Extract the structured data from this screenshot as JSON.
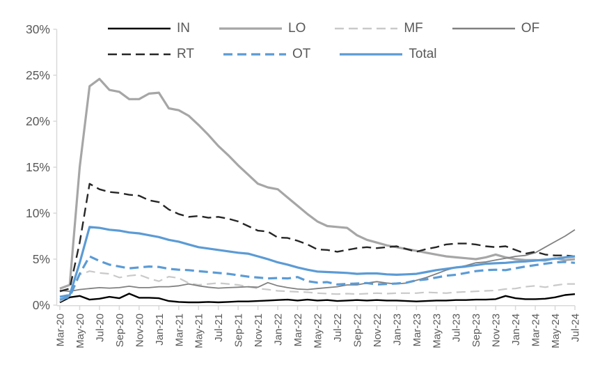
{
  "colors": {
    "axis_line": "#D9D9D9",
    "tick_label_color": "#595959",
    "legend_text_color": "#595959",
    "background": "#FFFFFF"
  },
  "chart_data": {
    "type": "line",
    "title": "",
    "xlabel": "",
    "ylabel": "",
    "ylim": [
      0,
      30
    ],
    "ytick_step": 5,
    "ytick_labels": [
      "0%",
      "5%",
      "10%",
      "15%",
      "20%",
      "25%",
      "30%"
    ],
    "grid": false,
    "legend_position": "top",
    "x_label_every": 2,
    "x_label_rotation": -90,
    "categories": [
      "Mar-20",
      "Apr-20",
      "May-20",
      "Jun-20",
      "Jul-20",
      "Aug-20",
      "Sep-20",
      "Oct-20",
      "Nov-20",
      "Dec-20",
      "Jan-21",
      "Feb-21",
      "Mar-21",
      "Apr-21",
      "May-21",
      "Jun-21",
      "Jul-21",
      "Aug-21",
      "Sep-21",
      "Oct-21",
      "Nov-21",
      "Dec-21",
      "Jan-22",
      "Feb-22",
      "Mar-22",
      "Apr-22",
      "May-22",
      "Jun-22",
      "Jul-22",
      "Aug-22",
      "Sep-22",
      "Oct-22",
      "Nov-22",
      "Dec-22",
      "Jan-23",
      "Feb-23",
      "Mar-23",
      "Apr-23",
      "May-23",
      "Jun-23",
      "Jul-23",
      "Aug-23",
      "Sep-23",
      "Oct-23",
      "Nov-23",
      "Dec-23",
      "Jan-24",
      "Feb-24",
      "Mar-24",
      "Apr-24",
      "May-24",
      "Jun-24",
      "Jul-24"
    ],
    "series": [
      {
        "name": "IN",
        "color": "#000000",
        "style": "solid",
        "width": 2.4,
        "legend_row": 0,
        "values": [
          0.3,
          0.85,
          1.0,
          0.6,
          0.7,
          0.9,
          0.75,
          1.25,
          0.8,
          0.8,
          0.75,
          0.45,
          0.35,
          0.3,
          0.3,
          0.35,
          0.3,
          0.35,
          0.4,
          0.4,
          0.45,
          0.5,
          0.55,
          0.6,
          0.5,
          0.6,
          0.5,
          0.55,
          0.45,
          0.5,
          0.55,
          0.5,
          0.55,
          0.5,
          0.5,
          0.45,
          0.4,
          0.45,
          0.5,
          0.5,
          0.55,
          0.55,
          0.6,
          0.6,
          0.65,
          1.0,
          0.75,
          0.65,
          0.65,
          0.7,
          0.85,
          1.1,
          1.2
        ]
      },
      {
        "name": "LO",
        "color": "#A6A6A6",
        "style": "solid",
        "width": 3.2,
        "legend_row": 0,
        "values": [
          1.8,
          2.2,
          15.0,
          23.8,
          24.6,
          23.4,
          23.2,
          22.4,
          22.4,
          23.0,
          23.1,
          21.4,
          21.2,
          20.6,
          19.6,
          18.5,
          17.3,
          16.3,
          15.2,
          14.2,
          13.2,
          12.8,
          12.6,
          11.7,
          10.8,
          9.9,
          9.1,
          8.6,
          8.5,
          8.4,
          7.6,
          7.1,
          6.8,
          6.5,
          6.3,
          6.1,
          5.9,
          5.7,
          5.5,
          5.3,
          5.2,
          5.1,
          5.0,
          5.2,
          5.5,
          5.2,
          5.0,
          4.9,
          4.9,
          4.85,
          5.1,
          4.9,
          5.0
        ]
      },
      {
        "name": "MF",
        "color": "#C9C9C9",
        "style": "dashed",
        "width": 2.2,
        "legend_row": 0,
        "values": [
          0.4,
          1.0,
          3.3,
          3.7,
          3.5,
          3.4,
          3.0,
          3.2,
          3.3,
          2.9,
          2.6,
          3.1,
          2.95,
          2.4,
          2.2,
          2.3,
          2.4,
          2.3,
          2.2,
          2.0,
          1.8,
          1.7,
          1.55,
          1.5,
          1.45,
          1.4,
          1.3,
          1.25,
          1.2,
          1.25,
          1.2,
          1.25,
          1.3,
          1.25,
          1.3,
          1.3,
          1.3,
          1.4,
          1.35,
          1.3,
          1.4,
          1.45,
          1.5,
          1.55,
          1.6,
          1.75,
          1.8,
          2.0,
          2.1,
          1.95,
          2.15,
          2.3,
          2.3
        ]
      },
      {
        "name": "OF",
        "color": "#808080",
        "style": "solid",
        "width": 1.8,
        "legend_row": 0,
        "values": [
          1.6,
          1.5,
          1.7,
          1.8,
          1.9,
          1.85,
          1.9,
          2.05,
          1.9,
          1.9,
          2.0,
          2.0,
          2.1,
          2.3,
          2.1,
          1.95,
          1.85,
          1.9,
          1.95,
          2.0,
          1.95,
          2.45,
          2.1,
          1.9,
          1.75,
          1.7,
          1.8,
          1.9,
          2.0,
          2.2,
          2.2,
          2.4,
          2.55,
          2.4,
          2.3,
          2.4,
          2.7,
          3.0,
          3.4,
          3.8,
          4.1,
          4.3,
          4.6,
          4.7,
          4.9,
          5.1,
          5.3,
          5.4,
          5.7,
          6.3,
          6.9,
          7.5,
          8.2
        ]
      },
      {
        "name": "RT",
        "color": "#262626",
        "style": "dashed",
        "width": 2.4,
        "legend_row": 1,
        "values": [
          1.5,
          1.8,
          6.8,
          13.2,
          12.6,
          12.3,
          12.2,
          12.0,
          11.9,
          11.4,
          11.2,
          10.4,
          9.9,
          9.6,
          9.7,
          9.5,
          9.6,
          9.4,
          9.1,
          8.6,
          8.1,
          8.0,
          7.35,
          7.3,
          7.0,
          6.6,
          6.05,
          6.0,
          5.8,
          6.0,
          6.2,
          6.3,
          6.2,
          6.3,
          6.4,
          6.1,
          5.8,
          6.1,
          6.3,
          6.6,
          6.7,
          6.7,
          6.6,
          6.4,
          6.3,
          6.4,
          6.0,
          5.6,
          5.8,
          5.5,
          5.4,
          5.4,
          5.3
        ]
      },
      {
        "name": "OT",
        "color": "#5B9BD5",
        "style": "dashed",
        "width": 3.2,
        "legend_row": 1,
        "values": [
          0.6,
          0.9,
          3.4,
          5.3,
          4.8,
          4.4,
          4.2,
          4.0,
          4.1,
          4.2,
          4.15,
          3.95,
          3.85,
          3.8,
          3.7,
          3.6,
          3.5,
          3.4,
          3.25,
          3.1,
          3.0,
          2.9,
          2.95,
          2.9,
          3.05,
          2.6,
          2.45,
          2.5,
          2.25,
          2.3,
          2.35,
          2.4,
          2.25,
          2.3,
          2.35,
          2.45,
          2.7,
          2.8,
          3.0,
          3.2,
          3.3,
          3.5,
          3.7,
          3.8,
          3.85,
          3.8,
          4.0,
          4.2,
          4.35,
          4.5,
          4.65,
          4.7,
          4.6
        ]
      },
      {
        "name": "Total",
        "color": "#5B9BD5",
        "style": "solid",
        "width": 3.2,
        "legend_row": 1,
        "values": [
          0.9,
          1.1,
          4.6,
          8.5,
          8.4,
          8.2,
          8.1,
          7.9,
          7.8,
          7.6,
          7.4,
          7.1,
          6.9,
          6.6,
          6.3,
          6.15,
          6.0,
          5.85,
          5.7,
          5.6,
          5.3,
          5.0,
          4.65,
          4.4,
          4.1,
          3.85,
          3.65,
          3.6,
          3.55,
          3.5,
          3.4,
          3.45,
          3.45,
          3.35,
          3.3,
          3.35,
          3.4,
          3.6,
          3.8,
          3.95,
          4.1,
          4.2,
          4.35,
          4.5,
          4.55,
          4.6,
          4.7,
          4.75,
          4.85,
          4.95,
          5.05,
          5.2,
          5.3
        ]
      }
    ]
  }
}
